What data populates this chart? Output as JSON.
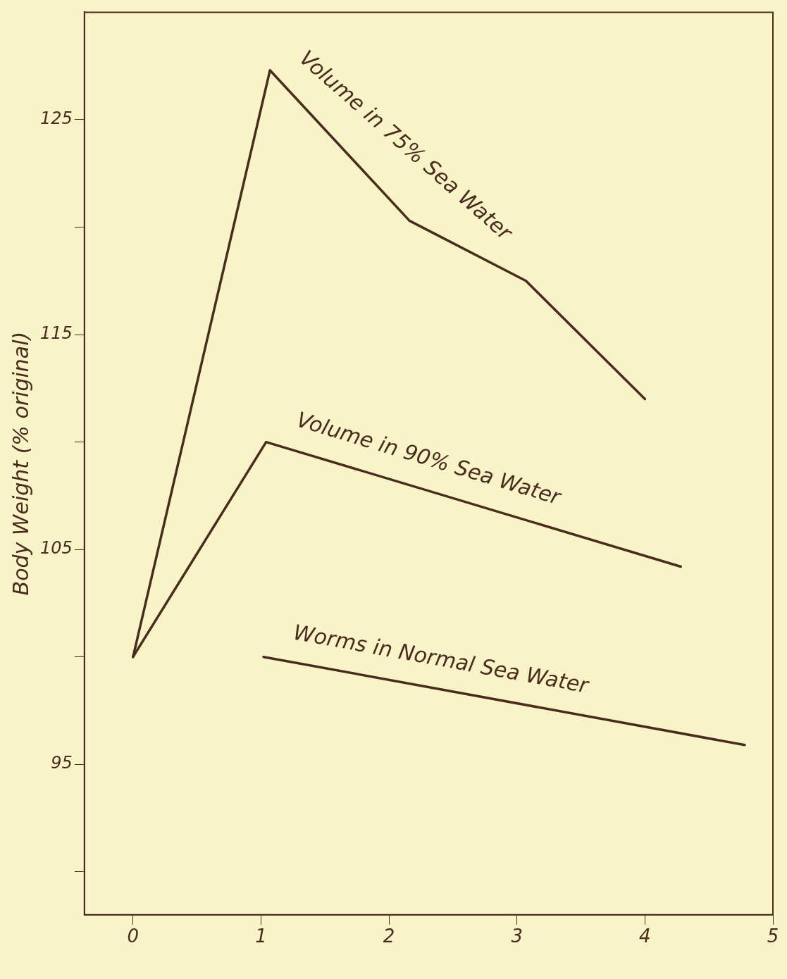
{
  "chart_data": {
    "type": "line",
    "ylabel": "Body Weight (% original)",
    "xlim": [
      -0.38,
      5
    ],
    "xticks": [
      0,
      1,
      2,
      3,
      4,
      5
    ],
    "ylim": [
      88,
      130
    ],
    "yticks": [
      {
        "value": 90,
        "label": null
      },
      95,
      {
        "value": 100,
        "label": null
      },
      105,
      {
        "value": 110,
        "label": null
      },
      115,
      {
        "value": 120,
        "label": null
      },
      125
    ],
    "grid": false,
    "legend": false,
    "marker": "none",
    "line_style": "solid",
    "series": [
      {
        "name": "Volume in 75% Sea Water",
        "color": "#4a2c1e",
        "x": [
          0,
          1.07,
          2.16,
          3.07,
          4.0
        ],
        "values": [
          100,
          127.3,
          120.3,
          117.5,
          112
        ]
      },
      {
        "name": "Volume in 90% Sea Water",
        "color": "#4a2c1e",
        "x": [
          0,
          1.04,
          4.28
        ],
        "values": [
          100,
          110,
          104.2
        ]
      },
      {
        "name": "Worms in Normal Sea Water",
        "color": "#4a2c1e",
        "x": [
          1.02,
          4.78
        ],
        "values": [
          100,
          95.9
        ]
      }
    ]
  }
}
